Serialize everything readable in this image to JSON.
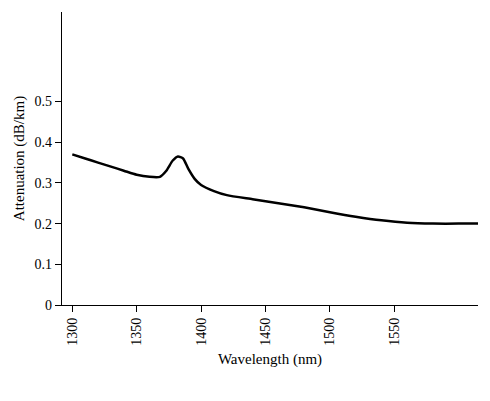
{
  "chart_data": {
    "type": "line",
    "x_label": "Wavelength (nm)",
    "y_label": "Attenuation (dB/km)",
    "x": [
      1300,
      1310,
      1320,
      1330,
      1340,
      1350,
      1360,
      1368,
      1373,
      1378,
      1382,
      1386,
      1390,
      1395,
      1400,
      1410,
      1420,
      1440,
      1460,
      1480,
      1500,
      1520,
      1540,
      1560,
      1580,
      1600,
      1615
    ],
    "series": [
      {
        "color": "#000000",
        "line_style": "solid",
        "values": [
          0.37,
          0.36,
          0.35,
          0.34,
          0.33,
          0.32,
          0.315,
          0.315,
          0.33,
          0.355,
          0.365,
          0.36,
          0.335,
          0.31,
          0.295,
          0.28,
          0.27,
          0.26,
          0.25,
          0.24,
          0.228,
          0.217,
          0.208,
          0.202,
          0.2,
          0.2,
          0.2
        ]
      }
    ],
    "xlim": [
      1292,
      1615
    ],
    "xticks": [
      1300,
      1350,
      1400,
      1450,
      1500,
      1550
    ],
    "ylim": [
      0,
      0.72
    ],
    "yticks": [
      0,
      0.1,
      0.2,
      0.3,
      0.4,
      0.5
    ],
    "grid": false
  }
}
